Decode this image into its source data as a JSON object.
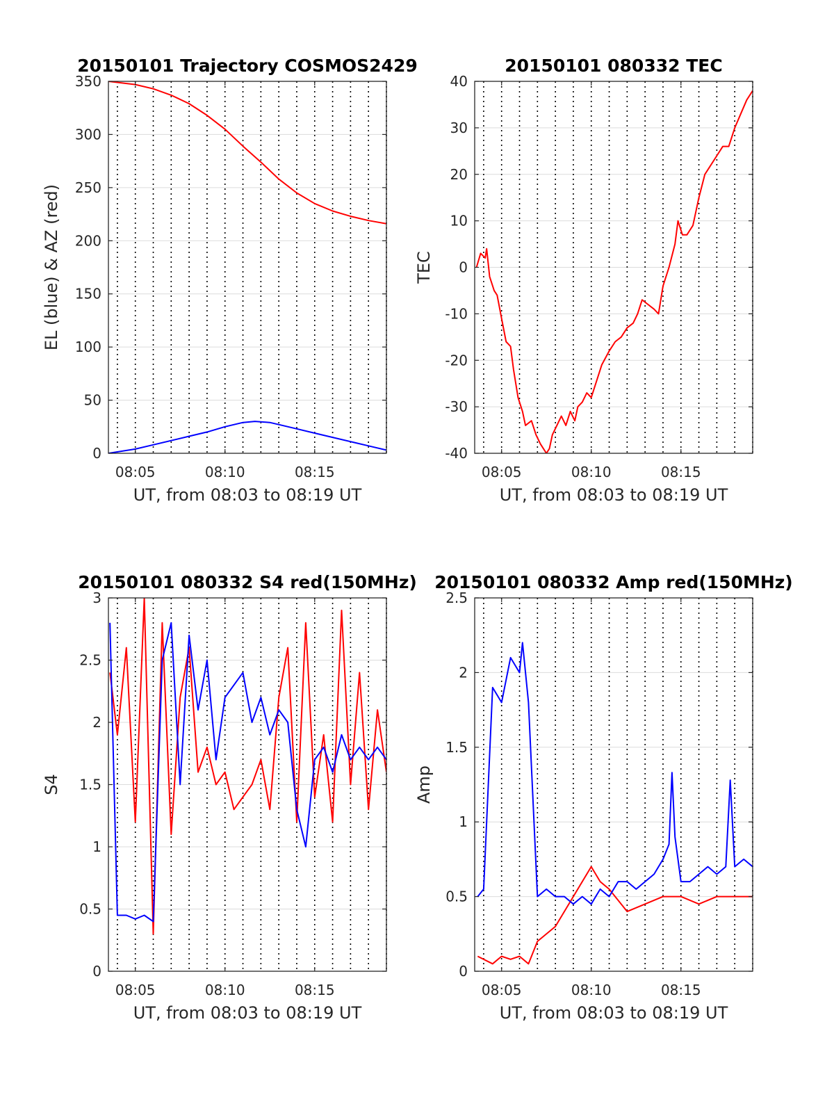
{
  "chart_data": [
    {
      "type": "line",
      "title": "20150101 Trajectory COSMOS2429",
      "xlabel": "UT, from 08:03 to 08:19 UT",
      "ylabel": "EL (blue) & AZ (red)",
      "xlim": [
        "08:03:30",
        "08:19:00"
      ],
      "ylim": [
        0,
        350
      ],
      "xticks": [
        "08:05",
        "08:10",
        "08:15"
      ],
      "yticks": [
        0,
        50,
        100,
        150,
        200,
        250,
        300,
        350
      ],
      "grid": true,
      "legend": "none",
      "series": [
        {
          "color": "#ff0000",
          "x": [
            "08:03:30",
            "08:05:00",
            "08:06:00",
            "08:07:00",
            "08:08:00",
            "08:09:00",
            "08:10:00",
            "08:11:00",
            "08:12:00",
            "08:13:00",
            "08:14:00",
            "08:15:00",
            "08:16:00",
            "08:17:00",
            "08:18:00",
            "08:19:00"
          ],
          "y": [
            350,
            347,
            343,
            337,
            329,
            318,
            305,
            289,
            274,
            258,
            245,
            235,
            228,
            223,
            219,
            216
          ]
        },
        {
          "color": "#0000ff",
          "x": [
            "08:03:30",
            "08:05:00",
            "08:06:00",
            "08:07:00",
            "08:08:00",
            "08:09:00",
            "08:10:00",
            "08:11:00",
            "08:11:40",
            "08:12:30",
            "08:13:00",
            "08:14:00",
            "08:15:00",
            "08:16:00",
            "08:17:00",
            "08:18:00",
            "08:19:00"
          ],
          "y": [
            0,
            4,
            8,
            12,
            16,
            20,
            25,
            29,
            30,
            29,
            27,
            23,
            19,
            15,
            11,
            7,
            3
          ]
        }
      ]
    },
    {
      "type": "line",
      "title": "20150101 080332 TEC",
      "xlabel": "UT, from 08:03 to 08:19 UT",
      "ylabel": "TEC",
      "xlim": [
        "08:03:30",
        "08:19:00"
      ],
      "ylim": [
        -40,
        40
      ],
      "xticks": [
        "08:05",
        "08:10",
        "08:15"
      ],
      "yticks": [
        -40,
        -30,
        -20,
        -10,
        0,
        10,
        20,
        30,
        40
      ],
      "grid": true,
      "legend": "none",
      "series": [
        {
          "color": "#ff0000",
          "x": [
            "08:03:36",
            "08:03:50",
            "08:04:05",
            "08:04:10",
            "08:04:20",
            "08:04:35",
            "08:04:45",
            "08:05:00",
            "08:05:15",
            "08:05:30",
            "08:05:40",
            "08:05:55",
            "08:06:10",
            "08:06:20",
            "08:06:40",
            "08:06:55",
            "08:07:10",
            "08:07:20",
            "08:07:30",
            "08:07:40",
            "08:07:50",
            "08:08:05",
            "08:08:20",
            "08:08:35",
            "08:08:50",
            "08:09:05",
            "08:09:15",
            "08:09:30",
            "08:09:45",
            "08:10:00",
            "08:10:15",
            "08:10:35",
            "08:11:00",
            "08:11:20",
            "08:11:40",
            "08:12:00",
            "08:12:20",
            "08:12:35",
            "08:12:50",
            "08:13:10",
            "08:13:30",
            "08:13:45",
            "08:14:00",
            "08:14:20",
            "08:14:40",
            "08:14:50",
            "08:15:05",
            "08:15:20",
            "08:15:40",
            "08:16:00",
            "08:16:20",
            "08:16:40",
            "08:17:00",
            "08:17:20",
            "08:17:40",
            "08:18:00",
            "08:18:20",
            "08:18:40",
            "08:19:00"
          ],
          "y": [
            0,
            3,
            2,
            4,
            -2,
            -5,
            -6,
            -11,
            -16,
            -17,
            -22,
            -28,
            -31,
            -34,
            -33,
            -36,
            -38,
            -39,
            -40,
            -39,
            -36,
            -34,
            -32,
            -34,
            -31,
            -33,
            -30,
            -29,
            -27,
            -28,
            -25,
            -21,
            -18,
            -16,
            -15,
            -13,
            -12,
            -10,
            -7,
            -8,
            -9,
            -10,
            -4,
            0,
            5,
            10,
            7,
            7,
            9,
            15,
            20,
            22,
            24,
            26,
            26,
            30,
            33,
            36,
            38
          ]
        }
      ]
    },
    {
      "type": "line",
      "title": "20150101 080332 S4 red(150MHz)",
      "xlabel": "UT, from 08:03 to 08:19 UT",
      "ylabel": "S4",
      "xlim": [
        "08:03:30",
        "08:19:00"
      ],
      "ylim": [
        0,
        3
      ],
      "xticks": [
        "08:05",
        "08:10",
        "08:15"
      ],
      "yticks": [
        0,
        0.5,
        1,
        1.5,
        2,
        2.5,
        3
      ],
      "grid": true,
      "legend": "none",
      "series": [
        {
          "color": "#ff0000",
          "x": [
            "08:03:35",
            "08:04:00",
            "08:04:30",
            "08:05:00",
            "08:05:30",
            "08:06:00",
            "08:06:30",
            "08:07:00",
            "08:07:30",
            "08:08:00",
            "08:08:30",
            "08:09:00",
            "08:09:30",
            "08:10:00",
            "08:10:30",
            "08:11:00",
            "08:11:30",
            "08:12:00",
            "08:12:30",
            "08:13:00",
            "08:13:30",
            "08:14:00",
            "08:14:30",
            "08:15:00",
            "08:15:30",
            "08:16:00",
            "08:16:30",
            "08:17:00",
            "08:17:30",
            "08:18:00",
            "08:18:30",
            "08:19:00"
          ],
          "y": [
            2.4,
            1.9,
            2.6,
            1.2,
            3.0,
            0.3,
            2.8,
            1.1,
            2.2,
            2.6,
            1.6,
            1.8,
            1.5,
            1.6,
            1.3,
            1.4,
            1.5,
            1.7,
            1.3,
            2.2,
            2.6,
            1.2,
            2.8,
            1.4,
            1.9,
            1.2,
            2.9,
            1.5,
            2.4,
            1.3,
            2.1,
            1.6
          ]
        },
        {
          "color": "#0000ff",
          "x": [
            "08:03:35",
            "08:04:00",
            "08:04:30",
            "08:05:00",
            "08:05:30",
            "08:06:00",
            "08:06:30",
            "08:07:00",
            "08:07:30",
            "08:08:00",
            "08:08:30",
            "08:09:00",
            "08:09:30",
            "08:10:00",
            "08:10:30",
            "08:11:00",
            "08:11:30",
            "08:12:00",
            "08:12:30",
            "08:13:00",
            "08:13:30",
            "08:14:00",
            "08:14:30",
            "08:15:00",
            "08:15:30",
            "08:16:00",
            "08:16:30",
            "08:17:00",
            "08:17:30",
            "08:18:00",
            "08:18:30",
            "08:19:00"
          ],
          "y": [
            2.8,
            0.45,
            0.45,
            0.42,
            0.45,
            0.4,
            2.5,
            2.8,
            1.5,
            2.7,
            2.1,
            2.5,
            1.7,
            2.2,
            2.3,
            2.4,
            2.0,
            2.2,
            1.9,
            2.1,
            2.0,
            1.3,
            1.0,
            1.7,
            1.8,
            1.6,
            1.9,
            1.7,
            1.8,
            1.7,
            1.8,
            1.7
          ]
        }
      ]
    },
    {
      "type": "line",
      "title": "20150101 080332 Amp red(150MHz)",
      "xlabel": "UT, from 08:03 to 08:19 UT",
      "ylabel": "Amp",
      "xlim": [
        "08:03:30",
        "08:19:00"
      ],
      "ylim": [
        0,
        2.5
      ],
      "xticks": [
        "08:05",
        "08:10",
        "08:15"
      ],
      "yticks": [
        0,
        0.5,
        1,
        1.5,
        2,
        2.5
      ],
      "grid": true,
      "legend": "none",
      "series": [
        {
          "color": "#ff0000",
          "x": [
            "08:03:40",
            "08:04:30",
            "08:05:00",
            "08:05:30",
            "08:06:00",
            "08:06:30",
            "08:07:00",
            "08:08:00",
            "08:09:00",
            "08:10:00",
            "08:10:30",
            "08:11:00",
            "08:12:00",
            "08:13:00",
            "08:14:00",
            "08:15:00",
            "08:16:00",
            "08:17:00",
            "08:18:00",
            "08:19:00"
          ],
          "y": [
            0.1,
            0.05,
            0.1,
            0.08,
            0.1,
            0.05,
            0.2,
            0.3,
            0.5,
            0.7,
            0.6,
            0.55,
            0.4,
            0.45,
            0.5,
            0.5,
            0.45,
            0.5,
            0.5,
            0.5
          ]
        },
        {
          "color": "#0000ff",
          "x": [
            "08:03:40",
            "08:04:00",
            "08:04:30",
            "08:05:00",
            "08:05:30",
            "08:06:00",
            "08:06:10",
            "08:06:30",
            "08:07:00",
            "08:07:30",
            "08:08:00",
            "08:08:30",
            "08:09:00",
            "08:09:30",
            "08:10:00",
            "08:10:30",
            "08:11:00",
            "08:11:30",
            "08:12:00",
            "08:12:30",
            "08:13:00",
            "08:13:30",
            "08:14:00",
            "08:14:20",
            "08:14:30",
            "08:14:40",
            "08:15:00",
            "08:15:30",
            "08:16:00",
            "08:16:30",
            "08:17:00",
            "08:17:30",
            "08:17:45",
            "08:18:00",
            "08:18:30",
            "08:19:00"
          ],
          "y": [
            0.5,
            0.55,
            1.9,
            1.8,
            2.1,
            2.0,
            2.2,
            1.8,
            0.5,
            0.55,
            0.5,
            0.5,
            0.45,
            0.5,
            0.45,
            0.55,
            0.5,
            0.6,
            0.6,
            0.55,
            0.6,
            0.65,
            0.75,
            0.85,
            1.33,
            0.9,
            0.6,
            0.6,
            0.65,
            0.7,
            0.65,
            0.7,
            1.28,
            0.7,
            0.75,
            0.7
          ]
        }
      ]
    }
  ]
}
